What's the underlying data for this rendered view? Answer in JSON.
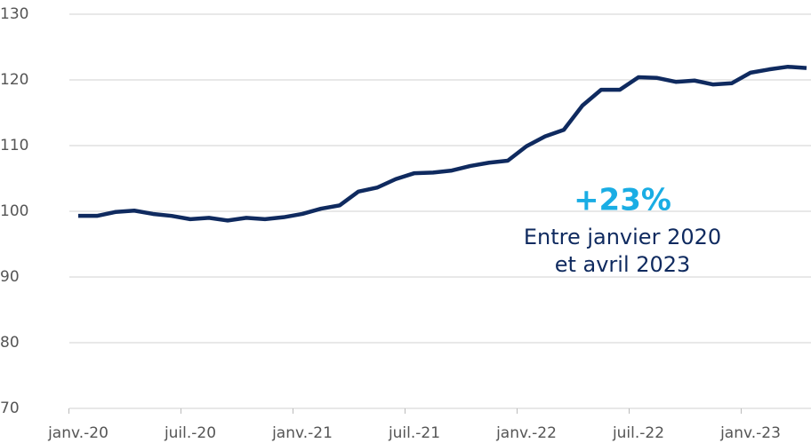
{
  "chart_data": {
    "type": "line",
    "categories": [
      "janv.-20",
      null,
      null,
      null,
      null,
      null,
      "juil.-20",
      null,
      null,
      null,
      null,
      null,
      "janv.-21",
      null,
      null,
      null,
      null,
      null,
      "juil.-21",
      null,
      null,
      null,
      null,
      null,
      "janv.-22",
      null,
      null,
      null,
      null,
      null,
      "juil.-22",
      null,
      null,
      null,
      null,
      null,
      "janv.-23",
      null,
      null,
      null
    ],
    "series": [
      {
        "color": "#0f2a5f",
        "values": [
          99.3,
          99.3,
          99.9,
          100.1,
          99.6,
          99.3,
          98.8,
          99.0,
          98.6,
          99.0,
          98.8,
          99.1,
          99.6,
          100.4,
          100.9,
          103.0,
          103.6,
          104.9,
          105.8,
          105.9,
          106.2,
          106.9,
          107.4,
          107.7,
          109.9,
          111.4,
          112.4,
          116.1,
          118.5,
          118.5,
          120.4,
          120.3,
          119.7,
          119.9,
          119.3,
          119.5,
          121.1,
          121.6,
          122.0,
          121.8
        ]
      }
    ],
    "ylim": [
      70,
      130
    ],
    "yticks": [
      70,
      80,
      90,
      100,
      110,
      120,
      130
    ],
    "grid": true,
    "annotations": [
      {
        "text": "+23%",
        "color": "#1aade4"
      },
      {
        "text": "Entre janvier 2020"
      },
      {
        "text": "et avril 2023"
      }
    ]
  }
}
